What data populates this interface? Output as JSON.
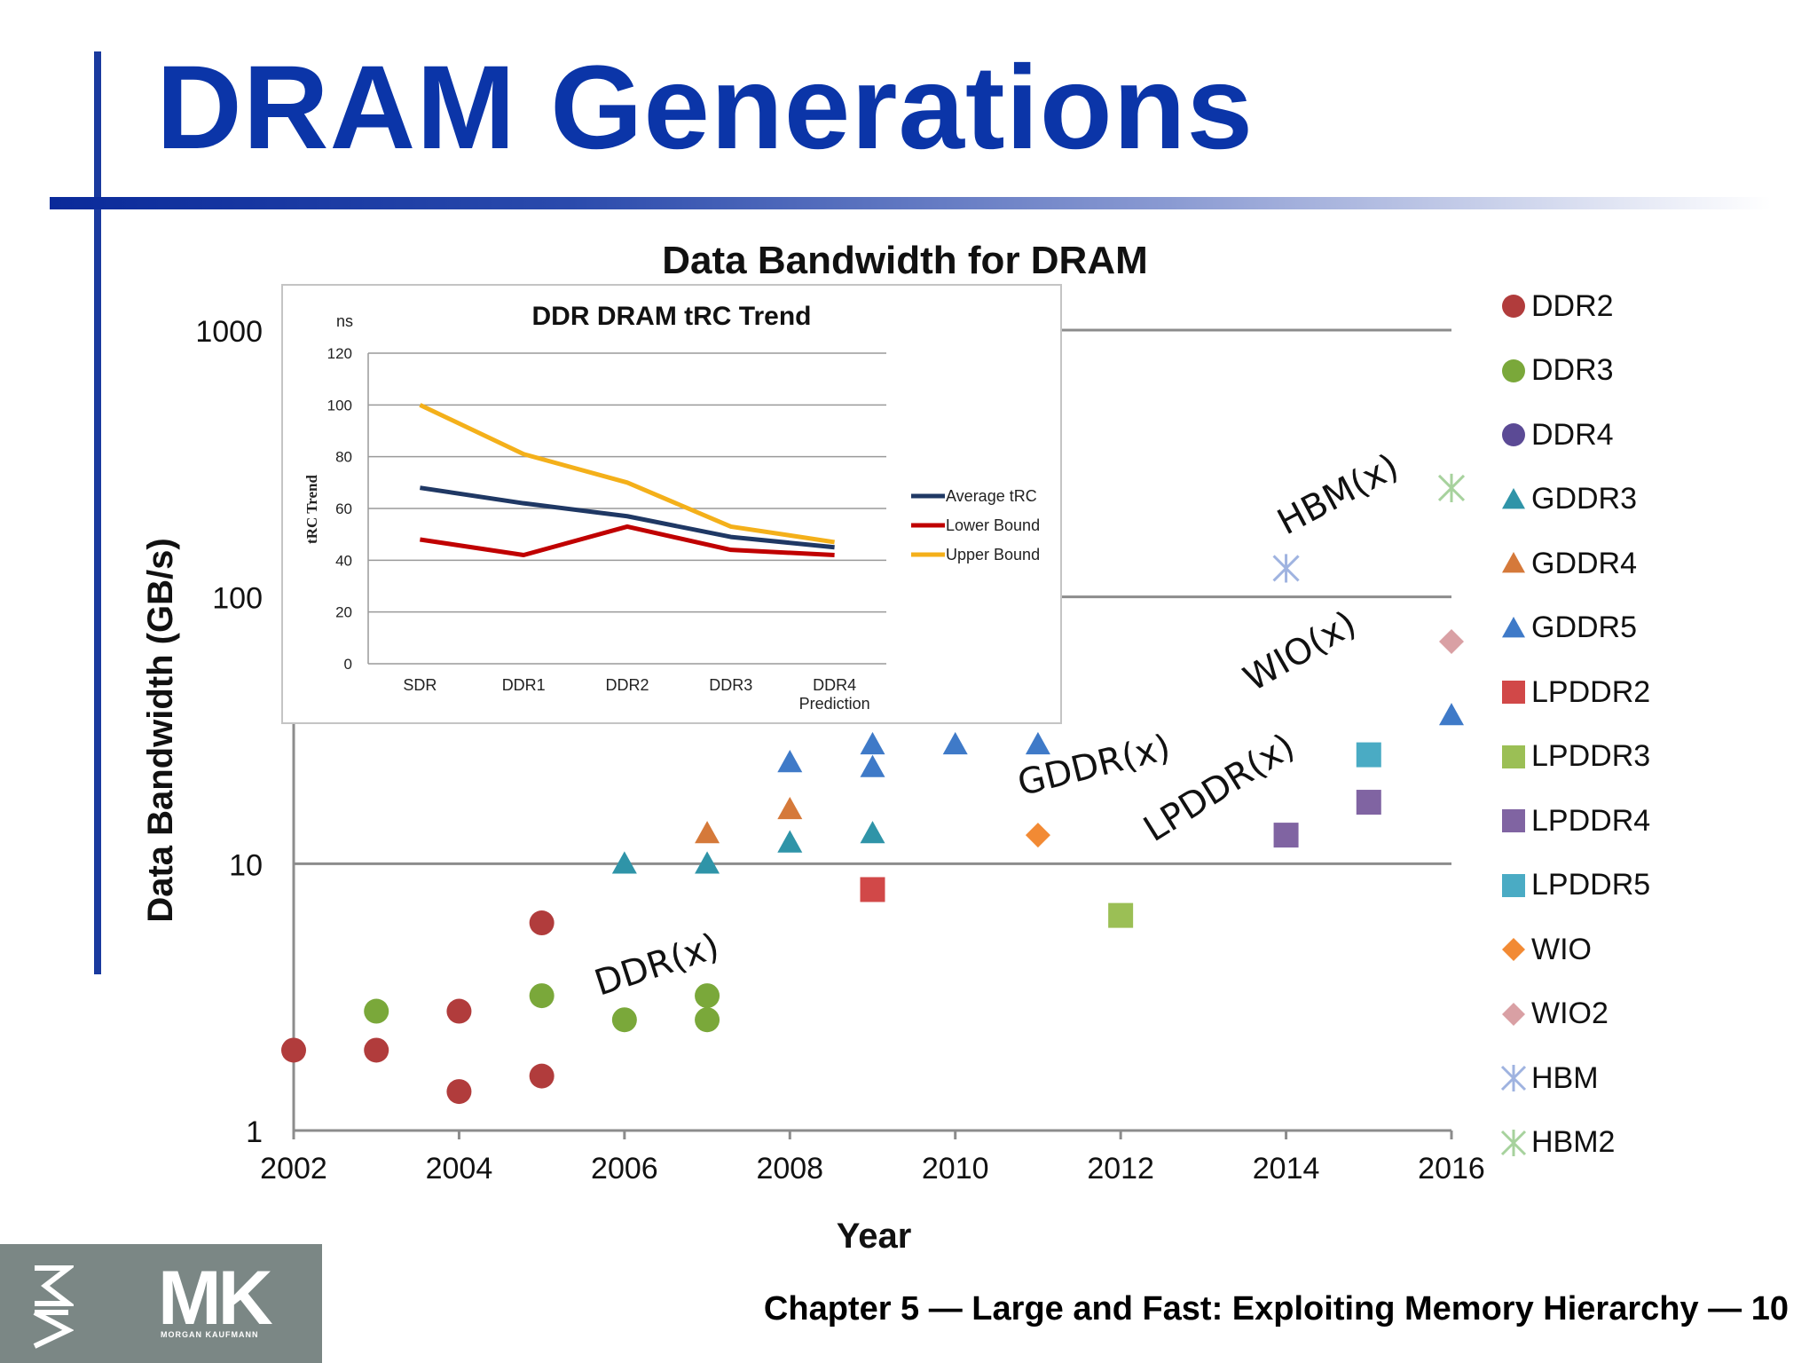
{
  "slide": {
    "title": "DRAM Generations",
    "footer": "Chapter 5 — Large and Fast: Exploiting Memory Hierarchy — 10",
    "logo": {
      "text": "MK",
      "sub": "MORGAN KAUFMANN",
      "side_text": "MK"
    },
    "colors": {
      "title": "#0b35a8",
      "accent_bar": "#1a3a9e",
      "logo_bg": "#7b8785"
    }
  },
  "chart_data": [
    {
      "type": "scatter",
      "title": "Data Bandwidth for DRAM",
      "xlabel": "Year",
      "ylabel": "Data Bandwidth (GB/s)",
      "yscale": "log",
      "ylim": [
        1,
        1000
      ],
      "xlim": [
        2002,
        2016
      ],
      "x_ticks": [
        "2002",
        "2004",
        "2006",
        "2008",
        "2010",
        "2012",
        "2014",
        "2016"
      ],
      "y_ticks": [
        {
          "value": 1,
          "label": "1"
        },
        {
          "value": 10,
          "label": "10"
        },
        {
          "value": 100,
          "label": "100"
        },
        {
          "value": 1000,
          "label": "1000"
        }
      ],
      "legend_position": "right",
      "series": [
        {
          "name": "DDR2",
          "marker": "circle",
          "color": "#b13c3c",
          "points": [
            [
              2002,
              2.0
            ],
            [
              2003,
              2.0
            ],
            [
              2004,
              1.4
            ],
            [
              2004,
              2.8
            ],
            [
              2005,
              1.6
            ],
            [
              2005,
              6.0
            ]
          ]
        },
        {
          "name": "DDR3",
          "marker": "circle",
          "color": "#7aa83a",
          "points": [
            [
              2003,
              2.8
            ],
            [
              2005,
              3.2
            ],
            [
              2006,
              2.6
            ],
            [
              2007,
              2.6
            ],
            [
              2007,
              3.2
            ]
          ]
        },
        {
          "name": "DDR4",
          "marker": "circle",
          "color": "#5b4a95",
          "points": []
        },
        {
          "name": "GDDR3",
          "marker": "triangle",
          "color": "#2f94a8",
          "points": [
            [
              2006,
              10
            ],
            [
              2007,
              10
            ],
            [
              2008,
              12
            ],
            [
              2009,
              13
            ]
          ]
        },
        {
          "name": "GDDR4",
          "marker": "triangle",
          "color": "#d5793a",
          "points": [
            [
              2007,
              13
            ],
            [
              2008,
              16
            ]
          ]
        },
        {
          "name": "GDDR5",
          "marker": "triangle",
          "color": "#3f7ac8",
          "points": [
            [
              2008,
              24
            ],
            [
              2009,
              23
            ],
            [
              2009,
              28
            ],
            [
              2010,
              28
            ],
            [
              2011,
              28
            ],
            [
              2016,
              36
            ]
          ]
        },
        {
          "name": "LPDDR2",
          "marker": "square",
          "color": "#d14848",
          "points": [
            [
              2009,
              8
            ]
          ]
        },
        {
          "name": "LPDDR3",
          "marker": "square",
          "color": "#9bbf55",
          "points": [
            [
              2012,
              6.4
            ]
          ]
        },
        {
          "name": "LPDDR4",
          "marker": "square",
          "color": "#8064a2",
          "points": [
            [
              2014,
              12.8
            ],
            [
              2015,
              17
            ]
          ]
        },
        {
          "name": "LPDDR5",
          "marker": "square",
          "color": "#4aabc4",
          "points": [
            [
              2015,
              25.6
            ]
          ]
        },
        {
          "name": "WIO",
          "marker": "diamond",
          "color": "#f28a34",
          "points": [
            [
              2011,
              12.8
            ]
          ]
        },
        {
          "name": "WIO2",
          "marker": "diamond",
          "color": "#d9a0a4",
          "points": [
            [
              2016,
              68
            ]
          ]
        },
        {
          "name": "HBM",
          "marker": "asterisk",
          "color": "#9fb3e0",
          "points": [
            [
              2014,
              128
            ]
          ]
        },
        {
          "name": "HBM2",
          "marker": "asterisk",
          "color": "#a7d29d",
          "points": [
            [
              2016,
              256
            ]
          ]
        }
      ],
      "annotations": [
        {
          "text": "DDR(x)",
          "x": 2005.7,
          "y": 3.2,
          "rotate": -18
        },
        {
          "text": "GDDR(x)",
          "x": 2010.8,
          "y": 18,
          "rotate": -14
        },
        {
          "text": "LPDDR(x)",
          "x": 2012.4,
          "y": 12,
          "rotate": -32
        },
        {
          "text": "WIO(x)",
          "x": 2013.6,
          "y": 44,
          "rotate": -30
        },
        {
          "text": "HBM(x)",
          "x": 2014.0,
          "y": 170,
          "rotate": -28
        }
      ]
    },
    {
      "type": "line",
      "title": "DDR DRAM tRC Trend",
      "ylabel": "tRC Trend",
      "yunit": "ns",
      "ylim": [
        0,
        120
      ],
      "y_ticks": [
        0,
        20,
        40,
        60,
        80,
        100,
        120
      ],
      "categories": [
        "SDR",
        "DDR1",
        "DDR2",
        "DDR3",
        "DDR4 Prediction"
      ],
      "legend_position": "right",
      "series": [
        {
          "name": "Average tRC",
          "color": "#1f3864",
          "values": [
            68,
            62,
            57,
            49,
            45
          ]
        },
        {
          "name": "Lower Bound",
          "color": "#c00000",
          "values": [
            48,
            42,
            53,
            44,
            42
          ]
        },
        {
          "name": "Upper Bound",
          "color": "#f4b01a",
          "values": [
            100,
            81,
            70,
            53,
            47
          ]
        }
      ]
    }
  ]
}
